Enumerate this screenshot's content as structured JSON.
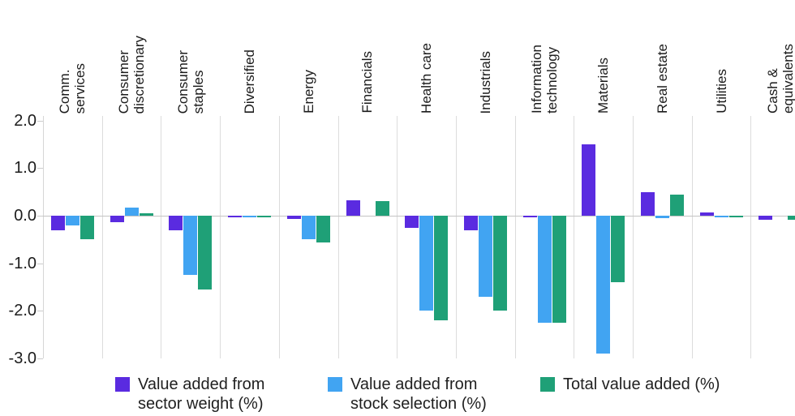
{
  "chart_data": {
    "type": "bar",
    "title": "",
    "xlabel": "",
    "ylabel": "",
    "ylim": [
      -3.0,
      2.0
    ],
    "grid": "vertical category separator lines, light gray; horizontal zero line",
    "legend_position": "bottom",
    "background_color": "#ffffff",
    "categories": [
      "Comm.\nservices",
      "Consumer\ndiscretionary",
      "Consumer\nstaples",
      "Diversified",
      "Energy",
      "Financials",
      "Health care",
      "Industrials",
      "Information\ntechnology",
      "Materials",
      "Real estate",
      "Utilities",
      "Cash &\nequivalents"
    ],
    "series": [
      {
        "name": "Value added from sector weight (%)",
        "color": "#5A2BE0",
        "values": [
          -0.3,
          -0.13,
          -0.3,
          -0.02,
          -0.07,
          0.33,
          -0.25,
          -0.3,
          -0.02,
          1.5,
          0.5,
          0.06,
          -0.08
        ]
      },
      {
        "name": "Value added from stock selection (%)",
        "color": "#41A4F2",
        "values": [
          -0.2,
          0.17,
          -1.25,
          -0.02,
          -0.5,
          0.0,
          -2.0,
          -1.7,
          -2.25,
          -2.9,
          -0.05,
          -0.03,
          0.0
        ]
      },
      {
        "name": "Total value added (%)",
        "color": "#1FA077",
        "values": [
          -0.5,
          0.05,
          -1.55,
          -0.02,
          -0.57,
          0.31,
          -2.2,
          -2.0,
          -2.25,
          -1.4,
          0.45,
          -0.02,
          -0.08
        ]
      }
    ],
    "y_axis": {
      "ticks": [
        {
          "label": "2.0",
          "value": 2.0
        },
        {
          "label": "1.0",
          "value": 1.0
        },
        {
          "label": "0.0",
          "value": 0.0
        },
        {
          "label": "-1.0",
          "value": -1.0
        },
        {
          "label": "-2.0",
          "value": -2.0
        },
        {
          "label": "-3.0",
          "value": -3.0
        }
      ]
    }
  }
}
